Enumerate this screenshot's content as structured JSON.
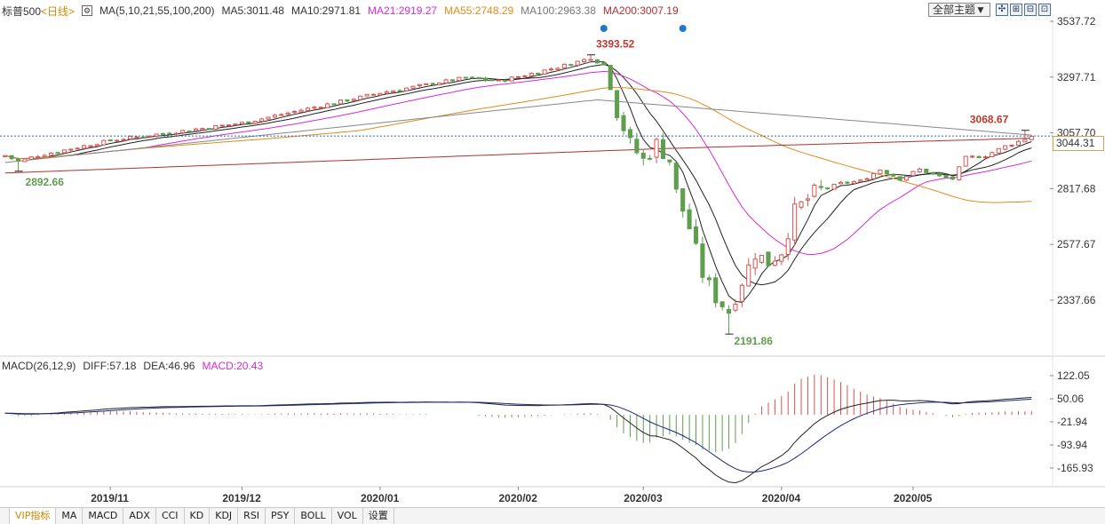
{
  "legend": {
    "symbol": "标普500",
    "period": "<日线>",
    "ma_params": "MA(5,10,21,55,100,200)",
    "ma5": "MA5:3011.48",
    "ma10": "MA10:2971.81",
    "ma21": "MA21:2919.27",
    "ma55": "MA55:2748.29",
    "ma100": "MA100:2963.38",
    "ma200": "MA200:3007.19"
  },
  "colors": {
    "up": "#d9534f",
    "down": "#5e9e4e",
    "ma5": "#222222",
    "ma10": "#222222",
    "ma21": "#d62ad8",
    "ma55": "#e08a1e",
    "ma100": "#888888",
    "ma200": "#b03030",
    "dif": "#222222",
    "dea": "#1a2a7a",
    "price_line": "#2a6fb0"
  },
  "toolbar": {
    "theme_label": "全部主题▼",
    "btn_crosshair": "✣",
    "btn_zoom_in": "⊞",
    "btn_zoom_out": "⊟",
    "btn_fullscreen": "⊡"
  },
  "current_price": "3044.31",
  "macd_legend": {
    "params": "MACD(26,12,9)",
    "diff": "DIFF:57.18",
    "dea": "DEA:46.96",
    "macd": "MACD:20.43"
  },
  "tabs": [
    "VIP指标",
    "MA",
    "MACD",
    "ADX",
    "CCI",
    "KD",
    "KDJ",
    "RSI",
    "PSY",
    "BOLL",
    "VOL",
    "设置"
  ],
  "chart_data": {
    "type": "candlestick",
    "price_axis": {
      "ticks": [
        3537.72,
        3297.71,
        3057.7,
        2817.68,
        2577.67,
        2337.66
      ],
      "labels": [
        "3537.72",
        "3297.71",
        "3057.70",
        "2817.68",
        "2577.67",
        "2337.66"
      ]
    },
    "macd_axis": {
      "ticks": [
        122.05,
        50.06,
        -21.94,
        -93.94,
        -165.93
      ],
      "labels": [
        "122.05",
        "50.06",
        "-21.94",
        "-93.94",
        "-165.93"
      ]
    },
    "x_labels": [
      {
        "label": "2019/11",
        "i": 16
      },
      {
        "label": "2019/12",
        "i": 36
      },
      {
        "label": "2020/01",
        "i": 57
      },
      {
        "label": "2020/02",
        "i": 78
      },
      {
        "label": "2020/03",
        "i": 97
      },
      {
        "label": "2020/04",
        "i": 118
      },
      {
        "label": "2020/05",
        "i": 138
      }
    ],
    "annotations": [
      {
        "label": "3393.52",
        "i": 89,
        "value": 3393.52,
        "kind": "high"
      },
      {
        "label": "2892.66",
        "i": 2,
        "value": 2892.66,
        "kind": "low"
      },
      {
        "label": "2191.86",
        "i": 110,
        "value": 2191.86,
        "kind": "low"
      },
      {
        "label": "3068.67",
        "i": 155,
        "value": 3068.67,
        "kind": "high"
      }
    ],
    "close_start": 2960,
    "waypoints": [
      [
        0,
        2960
      ],
      [
        2,
        2935
      ],
      [
        5,
        2960
      ],
      [
        16,
        3025
      ],
      [
        36,
        3100
      ],
      [
        57,
        3230
      ],
      [
        70,
        3295
      ],
      [
        75,
        3280
      ],
      [
        78,
        3300
      ],
      [
        84,
        3340
      ],
      [
        89,
        3380
      ],
      [
        91,
        3350
      ],
      [
        93,
        3150
      ],
      [
        95,
        3010
      ],
      [
        97,
        2940
      ],
      [
        99,
        3010
      ],
      [
        101,
        2940
      ],
      [
        102,
        2800
      ],
      [
        104,
        2650
      ],
      [
        106,
        2450
      ],
      [
        108,
        2350
      ],
      [
        110,
        2290
      ],
      [
        112,
        2420
      ],
      [
        114,
        2540
      ],
      [
        116,
        2500
      ],
      [
        118,
        2550
      ],
      [
        120,
        2720
      ],
      [
        123,
        2800
      ],
      [
        127,
        2840
      ],
      [
        130,
        2850
      ],
      [
        133,
        2900
      ],
      [
        136,
        2860
      ],
      [
        139,
        2900
      ],
      [
        142,
        2870
      ],
      [
        144,
        2860
      ],
      [
        146,
        2950
      ],
      [
        149,
        2960
      ],
      [
        152,
        3000
      ],
      [
        154,
        3020
      ],
      [
        156,
        3044.31
      ]
    ],
    "markers": [
      {
        "type": "dot",
        "i": 91
      },
      {
        "type": "dot",
        "i": 103
      }
    ]
  }
}
